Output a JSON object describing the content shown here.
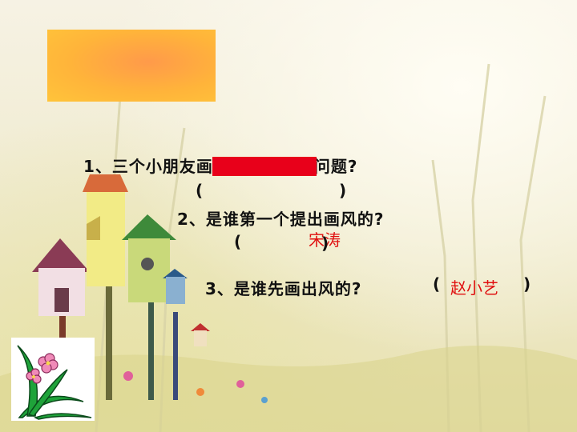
{
  "slide": {
    "questions": [
      {
        "text": "1、三个小朋友画画时遇到什么问题?",
        "answer": ""
      },
      {
        "text": "2、是谁第一个提出画风的?",
        "answer": "宋涛"
      },
      {
        "text": "3、是谁先画出风的?",
        "answer": "赵小艺"
      }
    ],
    "paren_open": "(",
    "paren_close": ")"
  },
  "colors": {
    "title_box": "#ffb43a",
    "answer": "#e01010",
    "redaction": "#e8001a"
  }
}
